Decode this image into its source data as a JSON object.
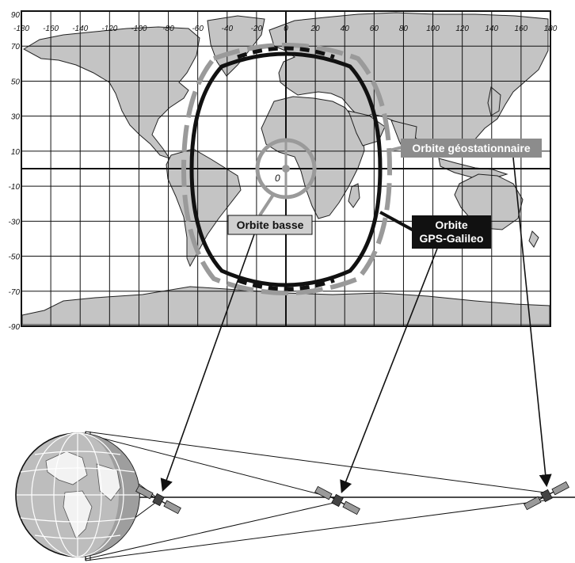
{
  "map": {
    "lon_ticks": [
      "-180",
      "-160",
      "-140",
      "-120",
      "-100",
      "-80",
      "-60",
      "-40",
      "-20",
      "0",
      "20",
      "40",
      "60",
      "80",
      "100",
      "120",
      "140",
      "160",
      "180"
    ],
    "lat_ticks": [
      "90",
      "70",
      "50",
      "30",
      "10",
      "-10",
      "-30",
      "-50",
      "-70",
      "-90"
    ],
    "center_label": "0"
  },
  "labels": {
    "orbit_low": "Orbite basse",
    "orbit_geo": "Orbite géostationnaire",
    "orbit_gps_line1": "Orbite",
    "orbit_gps_line2": "GPS-Galileo"
  },
  "colors": {
    "land": "#c4c4c4",
    "ocean": "#ffffff",
    "grid": "#111111",
    "orbit_grey": "#9a9a9a",
    "orbit_black": "#111111",
    "label_grey_bg": "#8c8c8c",
    "label_light_bg": "#cfcfcf",
    "label_dark_bg": "#111111"
  },
  "icons": [
    "globe-icon",
    "satellite-icon"
  ]
}
